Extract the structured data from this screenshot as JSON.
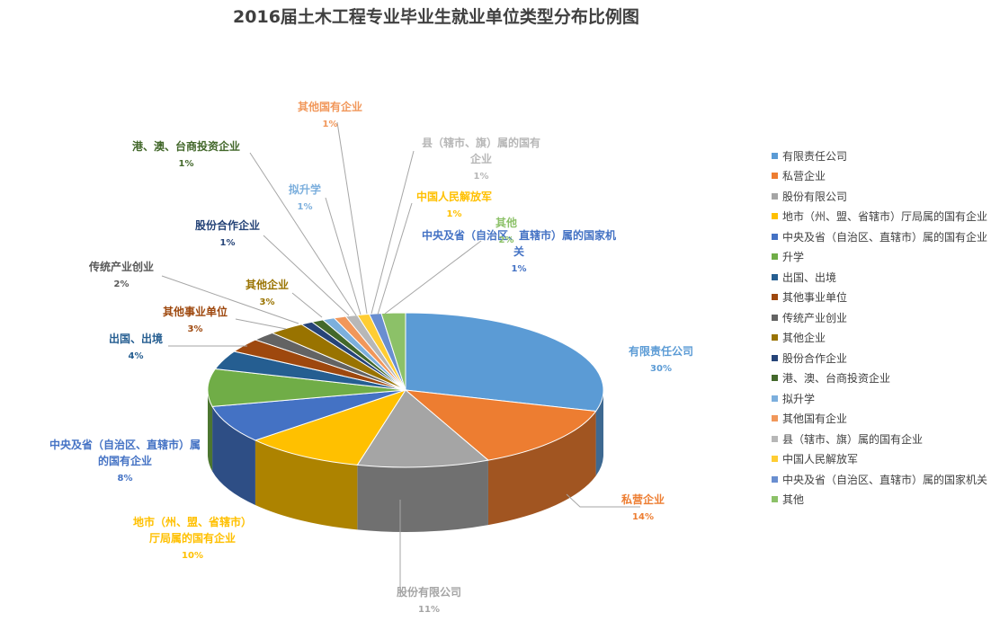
{
  "chart_data": {
    "type": "pie",
    "title": "2016届土木工程专业毕业生就业单位类型分布比例图",
    "categories": [
      "有限责任公司",
      "私营企业",
      "股份有限公司",
      "地市（州、盟、省辖市）厅局属的国有企业",
      "中央及省（自治区、直辖市）属的国有企业",
      "升学",
      "出国、出境",
      "其他事业单位",
      "传统产业创业",
      "其他企业",
      "股份合作企业",
      "港、澳、台商投资企业",
      "拟升学",
      "其他国有企业",
      "县（辖市、旗）属的国有企业",
      "中国人民解放军",
      "中央及省（自治区、直辖市）属的国家机关",
      "其他"
    ],
    "values": [
      30,
      14,
      11,
      10,
      8,
      8,
      4,
      3,
      2,
      3,
      1,
      1,
      1,
      1,
      1,
      1,
      1,
      2
    ],
    "percent_labels": [
      "30%",
      "14%",
      "11%",
      "10%",
      "8%",
      "",
      "4%",
      "3%",
      "2%",
      "3%",
      "1%",
      "1%",
      "1%",
      "1%",
      "1%",
      "1%",
      "1%",
      "2%"
    ],
    "slice_labels": [
      [
        "有限责任公司"
      ],
      [
        "私营企业"
      ],
      [
        "股份有限公司"
      ],
      [
        "地市（州、盟、省辖市）",
        "厅局属的国有企业"
      ],
      [
        "中央及省（自治区、直辖市）属",
        "的国有企业"
      ],
      [],
      [
        "出国、出境"
      ],
      [
        "其他事业单位"
      ],
      [
        "传统产业创业"
      ],
      [
        "其他企业"
      ],
      [
        "股份合作企业"
      ],
      [
        "港、澳、台商投资企业"
      ],
      [
        "拟升学"
      ],
      [
        "其他国有企业"
      ],
      [
        "县（辖市、旗）属的国有",
        "企业"
      ],
      [
        "中国人民解放军"
      ],
      [
        "中央及省（自治区、直辖市）属的国家机",
        "关"
      ],
      [
        "其他"
      ]
    ],
    "colors": [
      "#5B9BD5",
      "#ED7D31",
      "#A5A5A5",
      "#FFC000",
      "#4472C4",
      "#70AD47",
      "#255E91",
      "#9E480E",
      "#636363",
      "#997300",
      "#264478",
      "#43682B",
      "#7CAFDD",
      "#F1975A",
      "#B7B7B7",
      "#FFCD33",
      "#698ED0",
      "#8CC168"
    ],
    "label_colors": [
      "#5B9BD5",
      "#ED7D31",
      "#A5A5A5",
      "#FFC000",
      "#4472C4",
      "#70AD47",
      "#255E91",
      "#9E480E",
      "#595959",
      "#997300",
      "#264478",
      "#43682B",
      "#7CAFDD",
      "#F1975A",
      "#B7B7B7",
      "#FFC000",
      "#4472C4",
      "#8CC168"
    ],
    "legend_position": "right",
    "style": "3d-pie"
  }
}
